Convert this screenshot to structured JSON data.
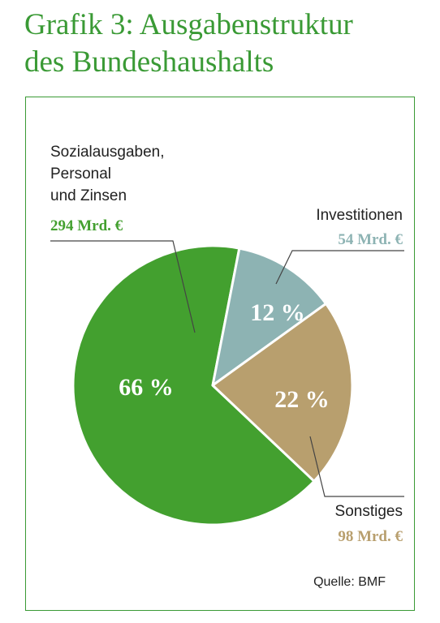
{
  "title_lines": [
    "Grafik 3: Ausgabenstruktur",
    "des Bundeshaushalts"
  ],
  "source": "Quelle: BMF",
  "colors": {
    "title": "#3a9a35",
    "frame": "#3a9a35",
    "social": "#43a02f",
    "invest": "#8db3b3",
    "other": "#b89f6e",
    "leader": "#444444"
  },
  "chart_data": {
    "type": "pie",
    "title": "Grafik 3: Ausgabenstruktur des Bundeshaushalts",
    "series": [
      {
        "label_lines": [
          "Sozialausgaben,",
          "Personal",
          "und Zinsen"
        ],
        "amount_label": "294 Mrd. €",
        "value": 294,
        "percent_label": "66 %",
        "percent": 66,
        "color": "#43a02f"
      },
      {
        "label_lines": [
          "Investitionen"
        ],
        "amount_label": "54 Mrd. €",
        "value": 54,
        "percent_label": "12 %",
        "percent": 12,
        "color": "#8db3b3"
      },
      {
        "label_lines": [
          "Sonstiges"
        ],
        "amount_label": "98 Mrd. €",
        "value": 98,
        "percent_label": "22 %",
        "percent": 22,
        "color": "#b89f6e"
      }
    ],
    "source": "Quelle: BMF"
  }
}
